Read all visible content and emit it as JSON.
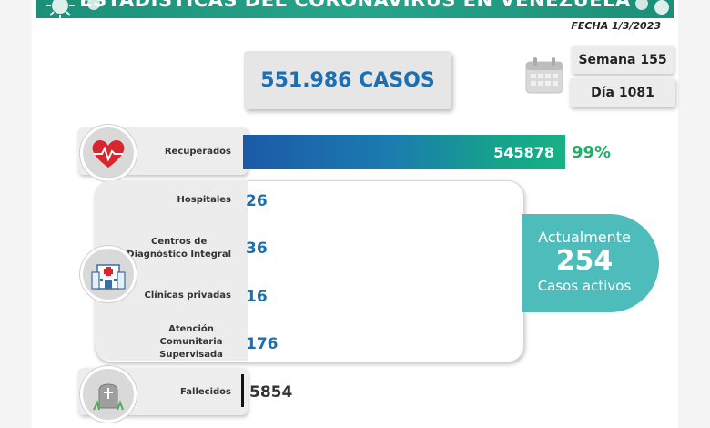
{
  "header": {
    "title": "ESTADÍSTICAS DEL CORONAVIRUS EN VENEZUELA",
    "date": "FECHA 1/3/2023"
  },
  "summary": {
    "total_cases": "551.986 CASOS",
    "week": "Semana 155",
    "day": "Día 1081"
  },
  "recovered": {
    "label": "Recuperados",
    "value": "545878",
    "percent": "99%",
    "fraction": 0.99
  },
  "active": {
    "locations": [
      {
        "label": "Hospitales",
        "value": "26"
      },
      {
        "label": "Centros de\nDiagnóstico Integral",
        "value": "36"
      },
      {
        "label": "Clínicas privadas",
        "value": "16"
      },
      {
        "label": "Atención\nComunitaria\nSupervisada",
        "value": "176"
      }
    ],
    "badge_line1": "Actualmente",
    "badge_value": "254",
    "badge_line2": "Casos activos"
  },
  "deaths": {
    "label": "Fallecidos",
    "value": "5854"
  },
  "colors": {
    "banner": "#1b8f79",
    "accent_blue": "#1c6fb1",
    "accent_green": "#1fae62",
    "active_badge": "#4dbcba",
    "heart": "#d8262e"
  },
  "icons": [
    "virus-icon",
    "calendar-icon",
    "heart-icon",
    "hospital-icon",
    "tombstone-icon"
  ]
}
